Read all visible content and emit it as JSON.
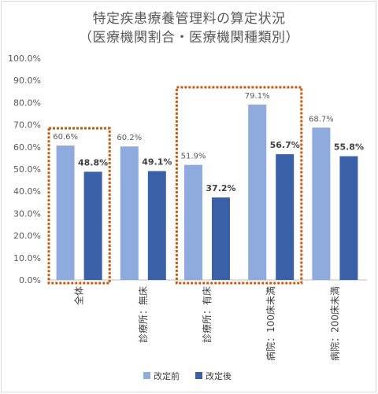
{
  "title_line1": "特定疾患療養管理料の算定状況",
  "title_line2": "（医療機関割合・医療機関種類別）",
  "chart_data": {
    "type": "bar",
    "title": "特定疾患療養管理料の算定状況（医療機関割合・医療機関種類別）",
    "categories": [
      "全体",
      "診療所：無床",
      "診療所：有床",
      "病院：100床未満",
      "病院：200床未満"
    ],
    "series": [
      {
        "name": "改定前",
        "values": [
          60.6,
          60.2,
          51.9,
          79.1,
          68.7
        ],
        "labels": [
          "60.6%",
          "60.2%",
          "51.9%",
          "79.1%",
          "68.7%"
        ],
        "color": "#8faadc"
      },
      {
        "name": "改定後",
        "values": [
          48.8,
          49.1,
          37.2,
          56.7,
          55.8
        ],
        "labels": [
          "48.8%",
          "49.1%",
          "37.2%",
          "56.7%",
          "55.8%"
        ],
        "color": "#3a60a8"
      }
    ],
    "ylim": [
      0,
      100
    ],
    "yticks": [
      "0.0%",
      "10.0%",
      "20.0%",
      "30.0%",
      "40.0%",
      "50.0%",
      "60.0%",
      "70.0%",
      "80.0%",
      "90.0%",
      "100.0%"
    ],
    "grid": false,
    "legend": "bottom",
    "highlight_color": "#c55a11",
    "highlighted_categories": [
      "全体",
      "診療所：有床",
      "病院：100床未満"
    ]
  }
}
